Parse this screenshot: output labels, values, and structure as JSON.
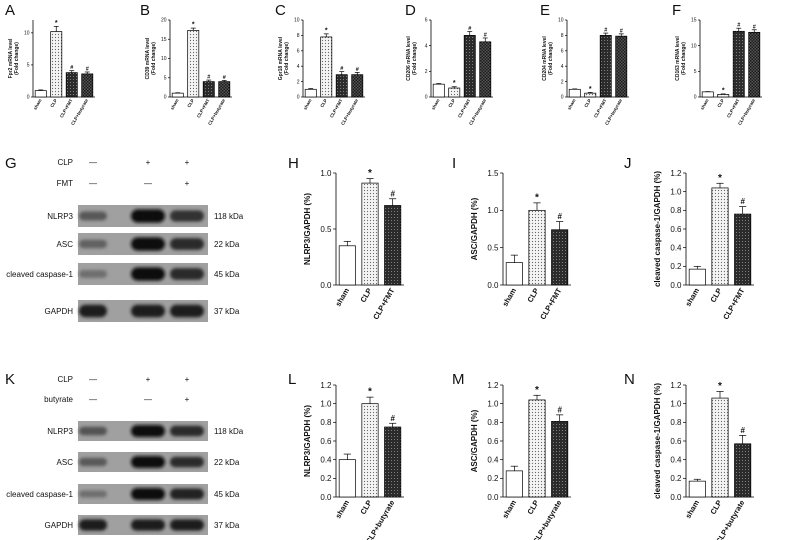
{
  "chart_data": [
    {
      "id": "A",
      "type": "bar",
      "ylabel_lines": [
        "Fpr2 mRNA level",
        "(Fold change)"
      ],
      "categories": [
        "sham",
        "CLP",
        "CLP+FMT",
        "CLP+butyrate"
      ],
      "values": [
        1.0,
        10.2,
        3.8,
        3.6
      ],
      "errors": [
        0.1,
        0.8,
        0.3,
        0.3
      ],
      "marks": [
        "",
        "*",
        "#",
        "#"
      ],
      "ylim": [
        0,
        12
      ],
      "yticks": [
        0,
        5,
        10
      ]
    },
    {
      "id": "B",
      "type": "bar",
      "ylabel_lines": [
        "CD39 mRNA level",
        "(Fold change)"
      ],
      "categories": [
        "sham",
        "CLP",
        "CLP+FMT",
        "CLP+butyrate"
      ],
      "values": [
        1.0,
        17.3,
        4.0,
        4.0
      ],
      "errors": [
        0.1,
        0.6,
        0.4,
        0.3
      ],
      "marks": [
        "",
        "*",
        "#",
        "#"
      ],
      "ylim": [
        0,
        20
      ],
      "yticks": [
        0,
        5,
        10,
        15,
        20
      ]
    },
    {
      "id": "C",
      "type": "bar",
      "ylabel_lines": [
        "Gpr18 mRNA level",
        "(Fold change)"
      ],
      "categories": [
        "sham",
        "CLP",
        "CLP+FMT",
        "CLP+butyrate"
      ],
      "values": [
        1.0,
        7.8,
        2.9,
        2.9
      ],
      "errors": [
        0.1,
        0.4,
        0.4,
        0.3
      ],
      "marks": [
        "",
        "*",
        "#",
        "#"
      ],
      "ylim": [
        0,
        10
      ],
      "yticks": [
        0,
        2,
        4,
        6,
        8,
        10
      ]
    },
    {
      "id": "D",
      "type": "bar",
      "ylabel_lines": [
        "CD206 mRNA level",
        "(Fold change)"
      ],
      "categories": [
        "sham",
        "CLP",
        "CLP+FMT",
        "CLP+butyrate"
      ],
      "values": [
        1.0,
        0.7,
        4.8,
        4.3
      ],
      "errors": [
        0.05,
        0.1,
        0.3,
        0.3
      ],
      "marks": [
        "",
        "*",
        "#",
        "#"
      ],
      "ylim": [
        0,
        6
      ],
      "yticks": [
        0,
        2,
        4,
        6
      ]
    },
    {
      "id": "E",
      "type": "bar",
      "ylabel_lines": [
        "CD204 mRNA level",
        "(Fold change)"
      ],
      "categories": [
        "sham",
        "CLP",
        "CLP+FMT",
        "CLP+butyrate"
      ],
      "values": [
        1.0,
        0.5,
        8.0,
        7.9
      ],
      "errors": [
        0.05,
        0.1,
        0.3,
        0.3
      ],
      "marks": [
        "",
        "*",
        "#",
        "#"
      ],
      "ylim": [
        0,
        10
      ],
      "yticks": [
        0,
        2,
        4,
        6,
        8,
        10
      ]
    },
    {
      "id": "F",
      "type": "bar",
      "ylabel_lines": [
        "CD163 mRNA level",
        "(Fold change)"
      ],
      "categories": [
        "sham",
        "CLP",
        "CLP+FMT",
        "CLP+butyrate"
      ],
      "values": [
        1.0,
        0.5,
        12.8,
        12.6
      ],
      "errors": [
        0.05,
        0.1,
        0.6,
        0.5
      ],
      "marks": [
        "",
        "*",
        "#",
        "#"
      ],
      "ylim": [
        0,
        15
      ],
      "yticks": [
        0,
        5,
        10,
        15
      ]
    },
    {
      "id": "H",
      "type": "bar",
      "ylabel_lines": [
        "NLRP3/GAPDH (%)"
      ],
      "categories": [
        "sham",
        "CLP",
        "CLP+FMT"
      ],
      "values": [
        0.35,
        0.91,
        0.71
      ],
      "errors": [
        0.04,
        0.04,
        0.06
      ],
      "marks": [
        "",
        "*",
        "#"
      ],
      "ylim": [
        0,
        1.0
      ],
      "yticks": [
        0.0,
        0.5,
        1.0
      ],
      "tick_labels": [
        "0.0",
        "0.5",
        "1.0"
      ]
    },
    {
      "id": "I",
      "type": "bar",
      "ylabel_lines": [
        "ASC/GAPDH (%)"
      ],
      "categories": [
        "sham",
        "CLP",
        "CLP+FMT"
      ],
      "values": [
        0.3,
        1.0,
        0.74
      ],
      "errors": [
        0.1,
        0.1,
        0.11
      ],
      "marks": [
        "",
        "*",
        "#"
      ],
      "ylim": [
        0,
        1.5
      ],
      "yticks": [
        0.0,
        0.5,
        1.0,
        1.5
      ],
      "tick_labels": [
        "0.0",
        "0.5",
        "1.0",
        "1.5"
      ]
    },
    {
      "id": "J",
      "type": "bar",
      "ylabel_lines": [
        "cleaved caspase-1/GAPDH (%)"
      ],
      "categories": [
        "sham",
        "CLP",
        "CLP+FMT"
      ],
      "values": [
        0.17,
        1.04,
        0.76
      ],
      "errors": [
        0.03,
        0.05,
        0.08
      ],
      "marks": [
        "",
        "*",
        "#"
      ],
      "ylim": [
        0,
        1.2
      ],
      "yticks": [
        0.0,
        0.2,
        0.4,
        0.6,
        0.8,
        1.0,
        1.2
      ],
      "tick_labels": [
        "0.0",
        "0.2",
        "0.4",
        "0.6",
        "0.8",
        "1.0",
        "1.2"
      ]
    },
    {
      "id": "L",
      "type": "bar",
      "ylabel_lines": [
        "NLRP3/GAPDH (%)"
      ],
      "categories": [
        "sham",
        "CLP",
        "CLP+butyrate"
      ],
      "values": [
        0.4,
        1.0,
        0.75
      ],
      "errors": [
        0.06,
        0.07,
        0.04
      ],
      "marks": [
        "",
        "*",
        "#"
      ],
      "ylim": [
        0,
        1.2
      ],
      "yticks": [
        0.0,
        0.2,
        0.4,
        0.6,
        0.8,
        1.0,
        1.2
      ],
      "tick_labels": [
        "0.0",
        "0.2",
        "0.4",
        "0.6",
        "0.8",
        "1.0",
        "1.2"
      ]
    },
    {
      "id": "M",
      "type": "bar",
      "ylabel_lines": [
        "ASC/GAPDH (%)"
      ],
      "categories": [
        "sham",
        "CLP",
        "CLP+butyrate"
      ],
      "values": [
        0.28,
        1.04,
        0.81
      ],
      "errors": [
        0.05,
        0.05,
        0.07
      ],
      "marks": [
        "",
        "*",
        "#"
      ],
      "ylim": [
        0,
        1.2
      ],
      "yticks": [
        0.0,
        0.2,
        0.4,
        0.6,
        0.8,
        1.0,
        1.2
      ],
      "tick_labels": [
        "0.0",
        "0.2",
        "0.4",
        "0.6",
        "0.8",
        "1.0",
        "1.2"
      ]
    },
    {
      "id": "N",
      "type": "bar",
      "ylabel_lines": [
        "cleaved caspase-1/GAPDH (%)"
      ],
      "categories": [
        "sham",
        "CLP",
        "CLP+butyrate"
      ],
      "values": [
        0.17,
        1.06,
        0.57
      ],
      "errors": [
        0.02,
        0.07,
        0.09
      ],
      "marks": [
        "",
        "*",
        "#"
      ],
      "ylim": [
        0,
        1.2
      ],
      "yticks": [
        0.0,
        0.2,
        0.4,
        0.6,
        0.8,
        1.0,
        1.2
      ],
      "tick_labels": [
        "0.0",
        "0.2",
        "0.4",
        "0.6",
        "0.8",
        "1.0",
        "1.2"
      ]
    }
  ],
  "bar_styles": [
    "white",
    "dots",
    "dark-dots",
    "checker"
  ],
  "blots": [
    {
      "id": "G",
      "conditions": [
        {
          "label": "CLP",
          "signs": [
            "—",
            "+",
            "+"
          ]
        },
        {
          "label": "FMT",
          "signs": [
            "—",
            "—",
            "+"
          ]
        }
      ],
      "bands": [
        {
          "label": "NLRP3",
          "size": "118 kDa",
          "intensity": [
            0.45,
            1.0,
            0.75
          ]
        },
        {
          "label": "ASC",
          "size": "22 kDa",
          "intensity": [
            0.4,
            1.0,
            0.8
          ]
        },
        {
          "label": "cleaved caspase-1",
          "size": "45 kDa",
          "intensity": [
            0.3,
            1.0,
            0.8
          ]
        },
        {
          "label": "GAPDH",
          "size": "37 kDa",
          "intensity": [
            0.9,
            0.9,
            0.9
          ]
        }
      ]
    },
    {
      "id": "K",
      "conditions": [
        {
          "label": "CLP",
          "signs": [
            "—",
            "+",
            "+"
          ]
        },
        {
          "label": "butyrate",
          "signs": [
            "—",
            "—",
            "+"
          ]
        }
      ],
      "bands": [
        {
          "label": "NLRP3",
          "size": "118 kDa",
          "intensity": [
            0.5,
            1.0,
            0.8
          ]
        },
        {
          "label": "ASC",
          "size": "22 kDa",
          "intensity": [
            0.45,
            1.0,
            0.8
          ]
        },
        {
          "label": "cleaved caspase-1",
          "size": "45 kDa",
          "intensity": [
            0.3,
            1.0,
            0.85
          ]
        },
        {
          "label": "GAPDH",
          "size": "37 kDa",
          "intensity": [
            0.9,
            0.9,
            0.9
          ]
        }
      ]
    }
  ]
}
